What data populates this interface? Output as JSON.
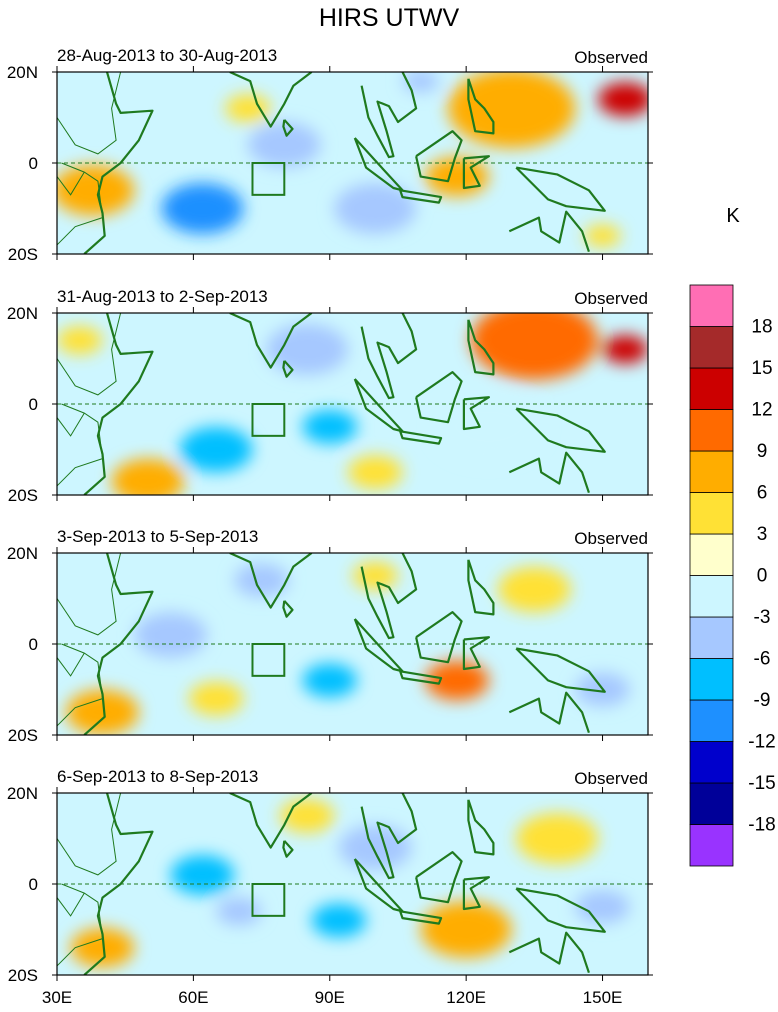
{
  "chart_data": {
    "type": "heatmap",
    "title": "HIRS UTWV",
    "colorbar": {
      "unit_label": "K",
      "levels": [
        "-18",
        "-15",
        "-12",
        "-9",
        "-6",
        "-3",
        "0",
        "3",
        "6",
        "9",
        "12",
        "15",
        "18"
      ],
      "colors": [
        "#9933ff",
        "#000099",
        "#0000cc",
        "#1e90ff",
        "#00bfff",
        "#a6c8ff",
        "#cdf6ff",
        "#ffffcc",
        "#ffe135",
        "#ffad00",
        "#ff6a00",
        "#cc0000",
        "#a52a2a",
        "#ff6eb4"
      ]
    },
    "x_axis": {
      "range": [
        30,
        160
      ],
      "ticks": [
        30,
        60,
        90,
        120,
        150
      ],
      "tick_labels": [
        "30E",
        "60E",
        "90E",
        "120E",
        "150E"
      ]
    },
    "y_axis": {
      "range": [
        -20,
        20
      ],
      "ticks": [
        -20,
        0,
        20
      ],
      "tick_labels": [
        "20S",
        "0",
        "20N"
      ]
    },
    "box_region": {
      "lon": [
        73,
        80
      ],
      "lat": [
        -7,
        0
      ]
    },
    "panels": [
      {
        "date_range": "28-Aug-2013 to 30-Aug-2013",
        "label": "Observed",
        "anomaly_features": [
          {
            "lon": 62,
            "lat": -10,
            "value": -12,
            "r": 9
          },
          {
            "lon": 80,
            "lat": 4,
            "value": -6,
            "r": 8
          },
          {
            "lon": 130,
            "lat": 12,
            "value": 7,
            "r": 14
          },
          {
            "lon": 155,
            "lat": 14,
            "value": 14,
            "r": 6
          },
          {
            "lon": 38,
            "lat": -6,
            "value": 6,
            "r": 9
          },
          {
            "lon": 118,
            "lat": -3,
            "value": 6,
            "r": 7
          },
          {
            "lon": 100,
            "lat": -10,
            "value": -4,
            "r": 9
          },
          {
            "lon": 72,
            "lat": 12,
            "value": 5,
            "r": 5
          },
          {
            "lon": 110,
            "lat": 18,
            "value": -5,
            "r": 4
          },
          {
            "lon": 150,
            "lat": -16,
            "value": 5,
            "r": 4
          }
        ]
      },
      {
        "date_range": "31-Aug-2013 to 2-Sep-2013",
        "label": "Observed",
        "anomaly_features": [
          {
            "lon": 65,
            "lat": -10,
            "value": -7,
            "r": 8
          },
          {
            "lon": 90,
            "lat": -5,
            "value": -7,
            "r": 6
          },
          {
            "lon": 135,
            "lat": 14,
            "value": 9,
            "r": 14
          },
          {
            "lon": 155,
            "lat": 12,
            "value": 12,
            "r": 5
          },
          {
            "lon": 50,
            "lat": -17,
            "value": 6,
            "r": 8
          },
          {
            "lon": 85,
            "lat": 12,
            "value": -4,
            "r": 9
          },
          {
            "lon": 125,
            "lat": -5,
            "value": -3,
            "r": 12
          },
          {
            "lon": 35,
            "lat": 14,
            "value": 4,
            "r": 5
          },
          {
            "lon": 100,
            "lat": -15,
            "value": 3,
            "r": 6
          }
        ]
      },
      {
        "date_range": "3-Sep-2013 to 5-Sep-2013",
        "label": "Observed",
        "anomaly_features": [
          {
            "lon": 118,
            "lat": -8,
            "value": 11,
            "r": 7
          },
          {
            "lon": 90,
            "lat": -8,
            "value": -9,
            "r": 6
          },
          {
            "lon": 55,
            "lat": 2,
            "value": -6,
            "r": 8
          },
          {
            "lon": 40,
            "lat": -15,
            "value": 6,
            "r": 8
          },
          {
            "lon": 135,
            "lat": 12,
            "value": 5,
            "r": 8
          },
          {
            "lon": 75,
            "lat": 14,
            "value": -4,
            "r": 6
          },
          {
            "lon": 150,
            "lat": -10,
            "value": -5,
            "r": 6
          },
          {
            "lon": 100,
            "lat": 15,
            "value": 4,
            "r": 5
          },
          {
            "lon": 65,
            "lat": -12,
            "value": 3,
            "r": 6
          }
        ]
      },
      {
        "date_range": "6-Sep-2013 to 8-Sep-2013",
        "label": "Observed",
        "anomaly_features": [
          {
            "lon": 62,
            "lat": 2,
            "value": -8,
            "r": 7
          },
          {
            "lon": 92,
            "lat": -8,
            "value": -8,
            "r": 6
          },
          {
            "lon": 70,
            "lat": -6,
            "value": -6,
            "r": 5
          },
          {
            "lon": 120,
            "lat": -10,
            "value": 8,
            "r": 10
          },
          {
            "lon": 40,
            "lat": -14,
            "value": 6,
            "r": 7
          },
          {
            "lon": 100,
            "lat": 8,
            "value": -5,
            "r": 8
          },
          {
            "lon": 140,
            "lat": 10,
            "value": 3,
            "r": 9
          },
          {
            "lon": 150,
            "lat": -5,
            "value": -4,
            "r": 6
          },
          {
            "lon": 85,
            "lat": 15,
            "value": 3,
            "r": 6
          }
        ]
      }
    ]
  }
}
